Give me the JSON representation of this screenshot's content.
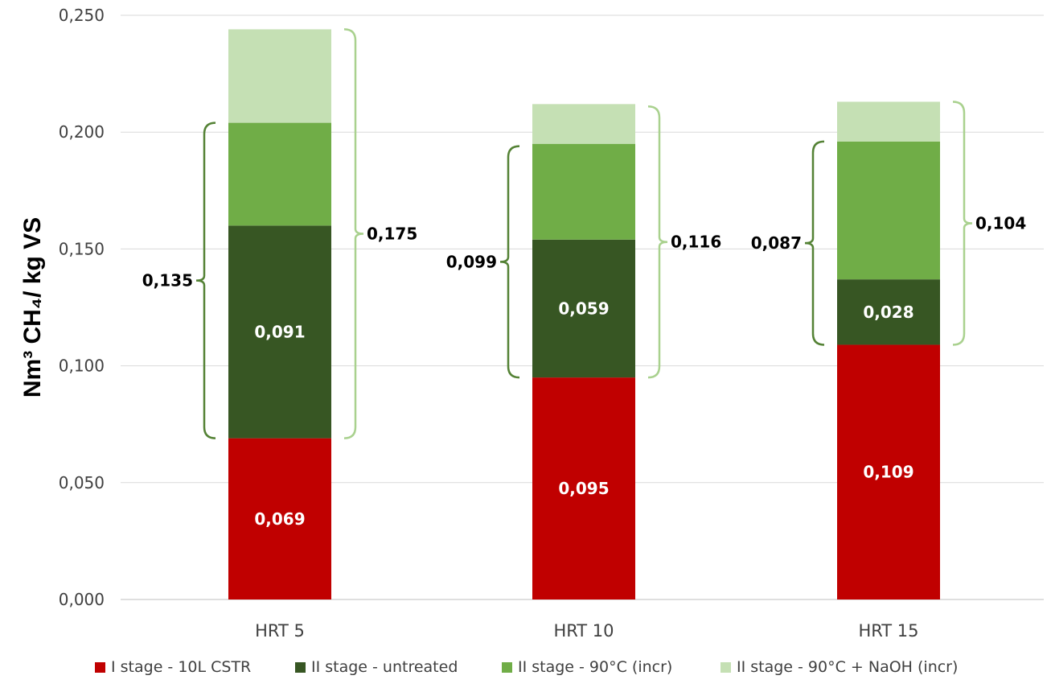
{
  "chart_data": {
    "type": "bar",
    "stacked": true,
    "ylabel": "Nm³ CH₄/ kg VS",
    "ylim": [
      0,
      0.25
    ],
    "yticks": [
      "0,000",
      "0,050",
      "0,100",
      "0,150",
      "0,200",
      "0,250"
    ],
    "ytick_values": [
      0,
      0.05,
      0.1,
      0.15,
      0.2,
      0.25
    ],
    "grid": true,
    "legend": "bottom",
    "categories": [
      "HRT 5",
      "HRT 10",
      "HRT 15"
    ],
    "series": [
      {
        "name": "I stage - 10L CSTR",
        "color": "#c00000",
        "values": [
          0.069,
          0.095,
          0.109
        ],
        "labels": [
          "0,069",
          "0,095",
          "0,109"
        ]
      },
      {
        "name": "II stage - untreated",
        "color": "#375623",
        "values": [
          0.091,
          0.059,
          0.028
        ],
        "labels": [
          "0,091",
          "0,059",
          "0,028"
        ]
      },
      {
        "name": "II stage - 90°C (incr)",
        "color": "#70ad47",
        "values": [
          0.044,
          0.041,
          0.059
        ],
        "labels": [
          "",
          "",
          ""
        ]
      },
      {
        "name": "II stage - 90°C + NaOH (incr)",
        "color": "#c5e0b4",
        "values": [
          0.04,
          0.017,
          0.017
        ],
        "labels": [
          "",
          "",
          ""
        ]
      }
    ],
    "brackets": [
      {
        "category": "HRT 5",
        "side": "left",
        "from": 0.069,
        "to": 0.204,
        "label": "0,135",
        "color": "#548235"
      },
      {
        "category": "HRT 5",
        "side": "right",
        "from": 0.069,
        "to": 0.244,
        "label": "0,175",
        "color": "#a9d18e"
      },
      {
        "category": "HRT 10",
        "side": "left",
        "from": 0.095,
        "to": 0.194,
        "label": "0,099",
        "color": "#548235"
      },
      {
        "category": "HRT 10",
        "side": "right",
        "from": 0.095,
        "to": 0.211,
        "label": "0,116",
        "color": "#a9d18e"
      },
      {
        "category": "HRT 15",
        "side": "left",
        "from": 0.109,
        "to": 0.196,
        "label": "0,087",
        "color": "#548235"
      },
      {
        "category": "HRT 15",
        "side": "right",
        "from": 0.109,
        "to": 0.213,
        "label": "0,104",
        "color": "#a9d18e"
      }
    ]
  }
}
